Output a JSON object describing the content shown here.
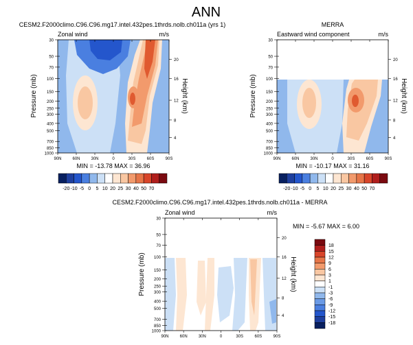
{
  "main_title": "ANN",
  "panels": {
    "model": {
      "title": "CESM2.F2000climo.C96.C96.mg17.intel.432pes.1thrds.nolb.ch011a (yrs 1)",
      "left_label": "Zonal wind",
      "right_label": "m/s",
      "stats": "MIN = -13.78   MAX =  36.96"
    },
    "obs": {
      "title": "MERRA",
      "left_label": "Eastward wind component",
      "right_label": "m/s",
      "stats": "MIN = -10.17   MAX =  31.16"
    },
    "diff": {
      "title": "CESM2.F2000climo.C96.C96.mg17.intel.432pes.1thrds.nolb.ch011a - MERRA",
      "left_label": "Zonal wind",
      "right_label": "m/s",
      "stats": "MIN =  -5.67   MAX =   6.00"
    }
  },
  "axis": {
    "ylabel": "Pressure (mb)",
    "ylabel_right": "Height (km)",
    "pressure_ticks": [
      "30",
      "50",
      "70",
      "100",
      "150",
      "200",
      "250",
      "300",
      "400",
      "500",
      "700",
      "850",
      "1000"
    ],
    "height_ticks": [
      "20",
      "16",
      "12",
      "8",
      "4"
    ],
    "lat_ticks": [
      "90N",
      "60N",
      "30N",
      "0",
      "30S",
      "60S",
      "90S"
    ]
  },
  "colorbars": {
    "top_labels": [
      "-20",
      "-10",
      "-5",
      "0",
      "5",
      "10",
      "20",
      "25",
      "30",
      "40",
      "50",
      "70"
    ],
    "diff_labels": [
      "18",
      "15",
      "12",
      "9",
      "6",
      "3",
      "1",
      "-1",
      "-3",
      "-6",
      "-9",
      "-12",
      "-15",
      "-18"
    ]
  },
  "colors": {
    "c_neg_dark": "#08205f",
    "c_neg_strong": "#2456cc",
    "c_neg_mid": "#4a7fe0",
    "c_neg_light": "#90b8ec",
    "c_neg_pale": "#cce0f6",
    "c_pos_pale": "#fde6d2",
    "c_pos_light": "#f9c7a2",
    "c_pos_mid": "#f29a6c",
    "c_pos_strong": "#e05a30",
    "c_pos_dark": "#7a0a10"
  },
  "chart_data": [
    {
      "type": "heatmap",
      "name": "model_zonal_wind",
      "title": "CESM2.F2000climo.C96.C96.mg17.intel.432pes.1thrds.nolb.ch011a (yrs 1)",
      "xlabel": "",
      "ylabel": "Pressure (mb)",
      "y2label": "Height (km)",
      "xlim": [
        "90N",
        "90S"
      ],
      "ylim": [
        1000,
        30
      ],
      "units": "m/s",
      "min": -13.78,
      "max": 36.96
    },
    {
      "type": "heatmap",
      "name": "merra_eastward_wind",
      "title": "MERRA",
      "ylabel": "Pressure (mb)",
      "y2label": "Height (km)",
      "xlim": [
        "90N",
        "90S"
      ],
      "ylim": [
        1000,
        30
      ],
      "units": "m/s",
      "min": -10.17,
      "max": 31.16
    },
    {
      "type": "heatmap",
      "name": "difference",
      "title": "CESM2.F2000climo.C96.C96.mg17.intel.432pes.1thrds.nolb.ch011a - MERRA",
      "ylabel": "Pressure (mb)",
      "y2label": "Height (km)",
      "xlim": [
        "90N",
        "90S"
      ],
      "ylim": [
        1000,
        30
      ],
      "units": "m/s",
      "min": -5.67,
      "max": 6.0
    }
  ]
}
